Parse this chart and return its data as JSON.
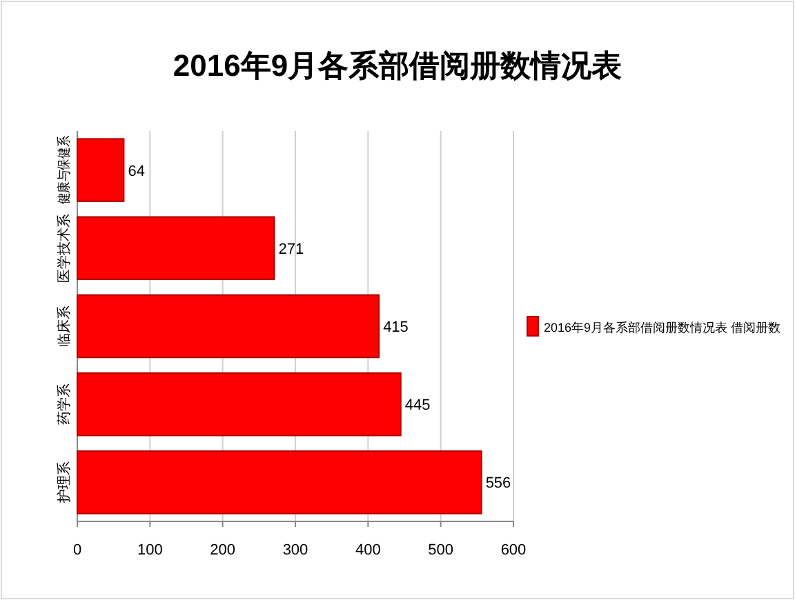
{
  "chart_data": {
    "type": "bar",
    "orientation": "horizontal",
    "title": "2016年9月各系部借阅册数情况表",
    "categories": [
      "健康与保健系",
      "医学技术系",
      "临床系",
      "药学系",
      "护理系"
    ],
    "series": [
      {
        "name": "2016年9月各系部借阅册数情况表 借阅册数",
        "color": "#ff0000",
        "values": [
          64,
          271,
          415,
          445,
          556
        ]
      }
    ],
    "xlim": [
      0,
      600
    ],
    "xticks": [
      0,
      100,
      200,
      300,
      400,
      500,
      600
    ],
    "grid": "x",
    "legend": "right",
    "data_labels": true
  }
}
